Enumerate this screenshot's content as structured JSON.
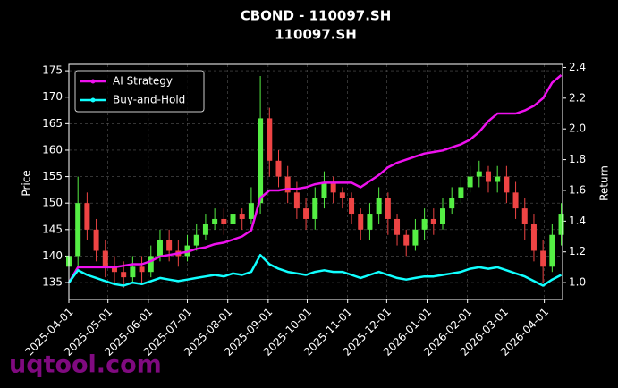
{
  "chart_data": {
    "type": "candlestick",
    "title": "CBOND - 110097.SH",
    "subtitle": "110097.SH",
    "y_label": "Price",
    "y2_label": "Return",
    "watermark": "uqtool.com",
    "x": [
      "2025-04-01",
      "2025-04-08",
      "2025-04-15",
      "2025-04-22",
      "2025-04-29",
      "2025-05-06",
      "2025-05-13",
      "2025-05-20",
      "2025-05-27",
      "2025-06-03",
      "2025-06-10",
      "2025-06-17",
      "2025-06-24",
      "2025-07-01",
      "2025-07-08",
      "2025-07-15",
      "2025-07-22",
      "2025-07-29",
      "2025-08-05",
      "2025-08-12",
      "2025-08-19",
      "2025-08-26",
      "2025-09-02",
      "2025-09-09",
      "2025-09-16",
      "2025-09-23",
      "2025-09-30",
      "2025-10-07",
      "2025-10-14",
      "2025-10-21",
      "2025-10-28",
      "2025-11-04",
      "2025-11-11",
      "2025-11-18",
      "2025-11-25",
      "2025-12-02",
      "2025-12-09",
      "2025-12-16",
      "2025-12-23",
      "2025-12-30",
      "2026-01-06",
      "2026-01-13",
      "2026-01-20",
      "2026-01-27",
      "2026-02-03",
      "2026-02-10",
      "2026-02-17",
      "2026-02-24",
      "2026-03-03",
      "2026-03-10",
      "2026-03-17",
      "2026-03-24",
      "2026-03-31",
      "2026-04-07",
      "2026-04-14"
    ],
    "open": [
      138,
      140,
      150,
      145,
      141,
      138,
      137,
      136,
      138,
      137,
      140,
      143,
      141,
      140,
      142,
      144,
      146,
      147,
      146,
      148,
      147,
      150,
      166,
      158,
      155,
      152,
      149,
      147,
      151,
      154,
      152,
      151,
      148,
      145,
      148,
      151,
      147,
      144,
      142,
      145,
      147,
      146,
      149,
      151,
      153,
      155,
      156,
      154,
      155,
      152,
      149,
      146,
      141,
      138,
      144
    ],
    "close": [
      140,
      150,
      145,
      141,
      138,
      137,
      136,
      138,
      137,
      140,
      143,
      141,
      140,
      142,
      144,
      146,
      147,
      146,
      148,
      147,
      150,
      166,
      158,
      155,
      152,
      149,
      147,
      151,
      154,
      152,
      151,
      148,
      145,
      148,
      151,
      147,
      144,
      142,
      145,
      147,
      146,
      149,
      151,
      153,
      155,
      156,
      154,
      155,
      152,
      149,
      146,
      141,
      138,
      144,
      148
    ],
    "high": [
      145,
      155,
      152,
      147,
      143,
      140,
      139,
      140,
      140,
      142,
      145,
      145,
      143,
      144,
      146,
      148,
      149,
      149,
      150,
      149,
      153,
      174,
      168,
      160,
      157,
      154,
      151,
      153,
      156,
      155,
      153,
      152,
      149,
      150,
      153,
      152,
      148,
      145,
      147,
      149,
      149,
      151,
      153,
      155,
      157,
      158,
      157,
      157,
      157,
      154,
      151,
      148,
      143,
      146,
      150
    ],
    "low": [
      135,
      138,
      143,
      139,
      136,
      135,
      134,
      135,
      135,
      136,
      139,
      139,
      138,
      139,
      141,
      143,
      145,
      144,
      145,
      145,
      146,
      148,
      155,
      153,
      150,
      147,
      145,
      145,
      149,
      150,
      149,
      146,
      143,
      143,
      146,
      144,
      142,
      140,
      141,
      143,
      144,
      145,
      148,
      150,
      152,
      153,
      152,
      152,
      150,
      147,
      143,
      139,
      135,
      137,
      142
    ],
    "up_color": "#55ee44",
    "down_color": "#ee4444",
    "series": [
      {
        "name": "AI Strategy",
        "color": "#ee11ee",
        "axis": "y2",
        "values": [
          1.0,
          1.1,
          1.1,
          1.1,
          1.1,
          1.1,
          1.11,
          1.12,
          1.12,
          1.14,
          1.17,
          1.18,
          1.19,
          1.2,
          1.22,
          1.23,
          1.25,
          1.26,
          1.28,
          1.3,
          1.34,
          1.55,
          1.6,
          1.6,
          1.61,
          1.61,
          1.62,
          1.64,
          1.65,
          1.65,
          1.65,
          1.65,
          1.62,
          1.66,
          1.7,
          1.75,
          1.78,
          1.8,
          1.82,
          1.84,
          1.85,
          1.86,
          1.88,
          1.9,
          1.93,
          1.98,
          2.05,
          2.1,
          2.1,
          2.1,
          2.12,
          2.15,
          2.2,
          2.3,
          2.35
        ]
      },
      {
        "name": "Buy-and-Hold",
        "color": "#11ffff",
        "axis": "y2",
        "values": [
          1.0,
          1.08,
          1.05,
          1.03,
          1.01,
          0.99,
          0.98,
          1.0,
          0.99,
          1.01,
          1.03,
          1.02,
          1.01,
          1.02,
          1.03,
          1.04,
          1.05,
          1.04,
          1.06,
          1.05,
          1.07,
          1.18,
          1.12,
          1.09,
          1.07,
          1.06,
          1.05,
          1.07,
          1.08,
          1.07,
          1.07,
          1.05,
          1.03,
          1.05,
          1.07,
          1.05,
          1.03,
          1.02,
          1.03,
          1.04,
          1.04,
          1.05,
          1.06,
          1.07,
          1.09,
          1.1,
          1.09,
          1.1,
          1.08,
          1.06,
          1.04,
          1.01,
          0.98,
          1.02,
          1.05
        ]
      }
    ],
    "xlim": [
      "2025-04-01",
      "2026-04-15"
    ],
    "xticks": [
      "2025-04-01",
      "2025-05-01",
      "2025-06-01",
      "2025-07-01",
      "2025-08-01",
      "2025-09-01",
      "2025-10-01",
      "2025-11-01",
      "2025-12-01",
      "2026-01-01",
      "2026-02-01",
      "2026-03-01",
      "2026-04-01"
    ],
    "ylim": [
      131.8,
      176.2
    ],
    "yticks": [
      135,
      140,
      145,
      150,
      155,
      160,
      165,
      170,
      175
    ],
    "y2lim": [
      0.89,
      2.42
    ],
    "y2ticks": [
      {
        "value": 1,
        "label": "1.0"
      },
      1.2,
      1.4,
      1.6,
      1.8,
      {
        "value": 2,
        "label": "2.0"
      },
      2.2,
      2.4
    ],
    "grid": true,
    "legend": "upper left"
  }
}
